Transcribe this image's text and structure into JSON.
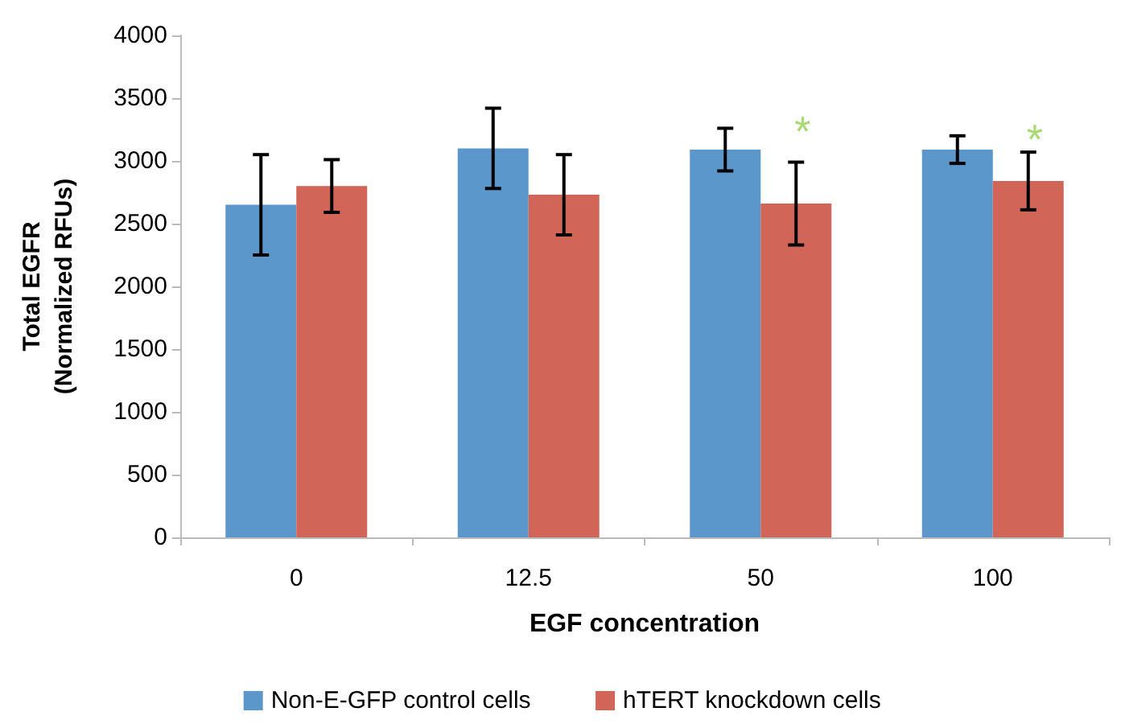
{
  "chart_data": {
    "type": "bar",
    "xlabel": "EGF concentration",
    "ylabel": "Total EGFR\n(Normalized RFUs)",
    "categories": [
      "0",
      "12.5",
      "50",
      "100"
    ],
    "series": [
      {
        "name": "Non-E-GFP control cells",
        "color": "#5b97cb",
        "values": [
          2650,
          3100,
          3090,
          3090
        ],
        "errors": [
          400,
          320,
          170,
          110
        ]
      },
      {
        "name": "hTERT knockdown cells",
        "color": "#d06558",
        "values": [
          2800,
          2730,
          2660,
          2840
        ],
        "errors": [
          210,
          320,
          330,
          230
        ]
      }
    ],
    "ylim": [
      0,
      4000
    ],
    "yticks": [
      0,
      500,
      1000,
      1500,
      2000,
      2500,
      3000,
      3500,
      4000
    ],
    "annotations": [
      "*",
      "*"
    ],
    "grid": false,
    "legend": "bottom"
  }
}
